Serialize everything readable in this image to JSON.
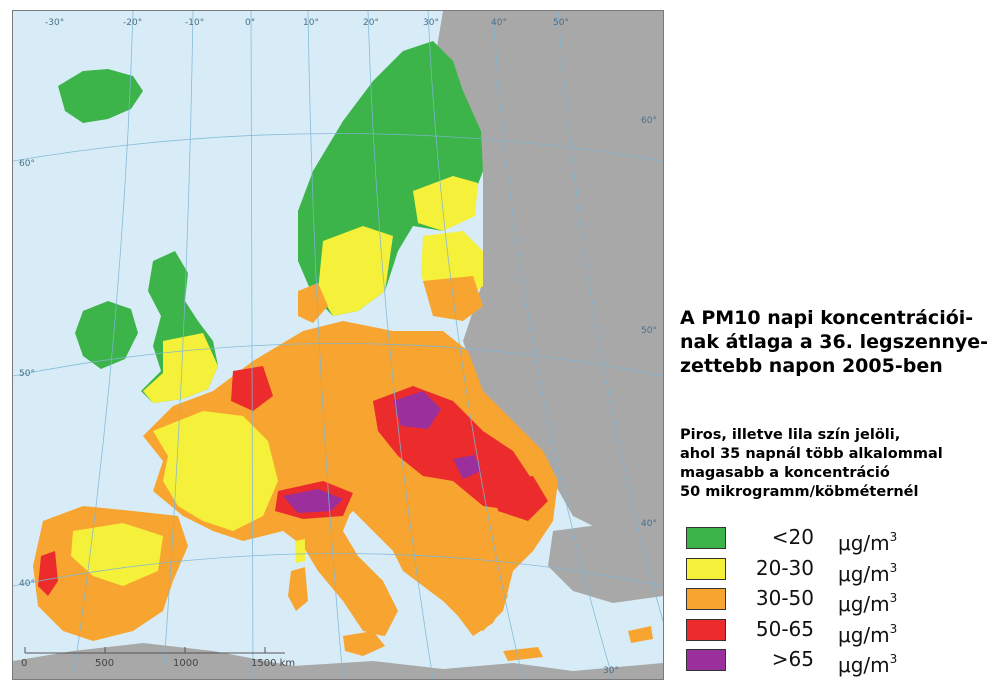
{
  "map": {
    "lon_labels": [
      "-30°",
      "-20°",
      "-10°",
      "0°",
      "10°",
      "20°",
      "30°",
      "40°",
      "50°"
    ],
    "lat_labels_left": [
      "60°",
      "50°",
      "40°"
    ],
    "lat_labels_right": [
      "60°",
      "50°",
      "40°",
      "30°"
    ],
    "scale_labels": [
      "0",
      "500",
      "1000",
      "1500 km"
    ]
  },
  "title_lines": [
    "A PM10  napi koncentrációi-",
    "nak átlaga a 36. legszennye-",
    "zettebb napon 2005-ben"
  ],
  "note_lines": [
    "Piros, illetve lila szín jelöli,",
    "ahol 35 napnál több alkalommal",
    "magasabb a koncentráció",
    "50 mikrogramm/köbméternél"
  ],
  "legend": {
    "unit_base": "μg/m",
    "unit_exp": "3",
    "items": [
      {
        "range": "<20",
        "color": "#3cb44a"
      },
      {
        "range": "20-30",
        "color": "#f5f03a"
      },
      {
        "range": "30-50",
        "color": "#f7a530"
      },
      {
        "range": "50-65",
        "color": "#ec2c2c"
      },
      {
        "range": ">65",
        "color": "#9b2f9b"
      }
    ]
  }
}
